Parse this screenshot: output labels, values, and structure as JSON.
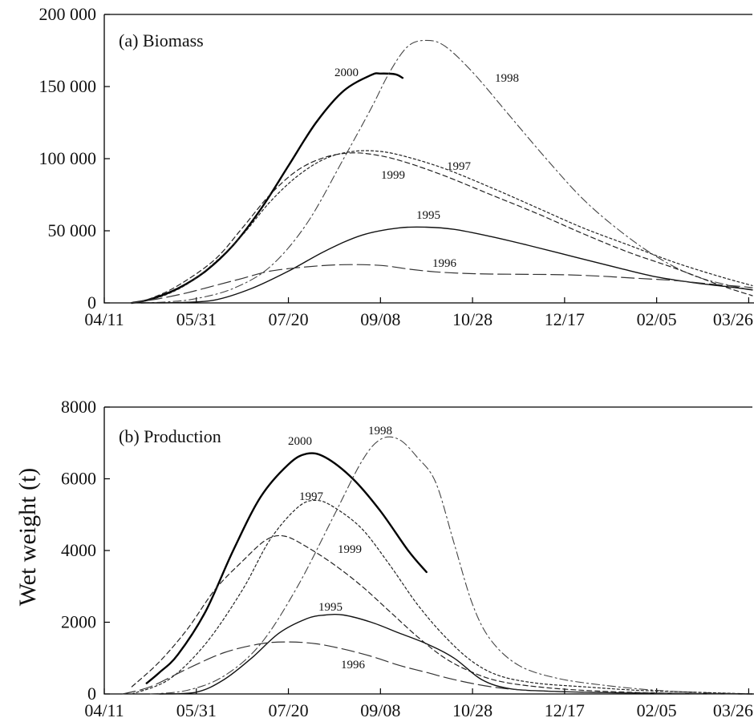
{
  "figure": {
    "ylabel": "Wet weight (t)"
  },
  "chart_data": [
    {
      "type": "line",
      "title": "(a) Biomass",
      "xlabel": "",
      "ylabel": "",
      "x_tick_labels": [
        "04/11",
        "05/31",
        "07/20",
        "09/08",
        "10/28",
        "12/17",
        "02/05",
        "03/26"
      ],
      "x_ticks_days": [
        0,
        50,
        100,
        150,
        200,
        250,
        300,
        350
      ],
      "y_tick_labels": [
        "0",
        "50 000",
        "100 000",
        "150 000",
        "200 000"
      ],
      "ylim": [
        0,
        200000
      ],
      "xlim": [
        0,
        352
      ],
      "grid": false,
      "series": [
        {
          "name": "2000",
          "color": "#000000",
          "style": "thick-solid",
          "points": [
            [
              15,
              0
            ],
            [
              25,
              2500
            ],
            [
              40,
              10000
            ],
            [
              55,
              22000
            ],
            [
              70,
              40000
            ],
            [
              85,
              65000
            ],
            [
              100,
              95000
            ],
            [
              115,
              125000
            ],
            [
              130,
              147000
            ],
            [
              145,
              158000
            ],
            [
              150,
              159000
            ],
            [
              158,
              158500
            ],
            [
              162,
              156000
            ]
          ]
        },
        {
          "name": "1998",
          "color": "#444444",
          "style": "dash-dot",
          "points": [
            [
              20,
              0
            ],
            [
              35,
              800
            ],
            [
              50,
              3000
            ],
            [
              70,
              10000
            ],
            [
              90,
              25000
            ],
            [
              110,
              55000
            ],
            [
              130,
              100000
            ],
            [
              145,
              135000
            ],
            [
              155,
              160000
            ],
            [
              165,
              178000
            ],
            [
              175,
              182000
            ],
            [
              185,
              178000
            ],
            [
              200,
              160000
            ],
            [
              220,
              130000
            ],
            [
              240,
              100000
            ],
            [
              260,
              72000
            ],
            [
              280,
              50000
            ],
            [
              300,
              32000
            ],
            [
              320,
              19000
            ],
            [
              340,
              12000
            ],
            [
              352,
              9000
            ]
          ]
        },
        {
          "name": "1997",
          "color": "#222222",
          "style": "dotted",
          "points": [
            [
              15,
              0
            ],
            [
              30,
              4000
            ],
            [
              45,
              13000
            ],
            [
              60,
              28000
            ],
            [
              75,
              47000
            ],
            [
              90,
              70000
            ],
            [
              105,
              88000
            ],
            [
              120,
              100000
            ],
            [
              135,
              105000
            ],
            [
              150,
              105000
            ],
            [
              165,
              101000
            ],
            [
              185,
              93000
            ],
            [
              210,
              80000
            ],
            [
              235,
              66000
            ],
            [
              260,
              52000
            ],
            [
              285,
              40000
            ],
            [
              310,
              28000
            ],
            [
              335,
              18000
            ],
            [
              352,
              12000
            ]
          ]
        },
        {
          "name": "1999",
          "color": "#222222",
          "style": "short-dash",
          "points": [
            [
              15,
              0
            ],
            [
              25,
              3000
            ],
            [
              40,
              12000
            ],
            [
              60,
              30000
            ],
            [
              75,
              52000
            ],
            [
              90,
              75000
            ],
            [
              105,
              92000
            ],
            [
              120,
              101000
            ],
            [
              135,
              104000
            ],
            [
              150,
              102000
            ],
            [
              165,
              97000
            ],
            [
              185,
              88000
            ],
            [
              210,
              75000
            ],
            [
              235,
              62000
            ],
            [
              260,
              48000
            ],
            [
              285,
              35000
            ],
            [
              310,
              24000
            ],
            [
              335,
              12000
            ],
            [
              352,
              5000
            ]
          ]
        },
        {
          "name": "1995",
          "color": "#111111",
          "style": "solid",
          "points": [
            [
              20,
              0
            ],
            [
              40,
              200
            ],
            [
              60,
              2000
            ],
            [
              80,
              10000
            ],
            [
              100,
              22000
            ],
            [
              120,
              36000
            ],
            [
              140,
              47000
            ],
            [
              160,
              52000
            ],
            [
              175,
              52500
            ],
            [
              190,
              51000
            ],
            [
              210,
              46000
            ],
            [
              230,
              40000
            ],
            [
              255,
              32000
            ],
            [
              280,
              24000
            ],
            [
              300,
              18000
            ],
            [
              320,
              14000
            ],
            [
              340,
              11000
            ],
            [
              352,
              9000
            ]
          ]
        },
        {
          "name": "1996",
          "color": "#333333",
          "style": "long-dash",
          "points": [
            [
              15,
              0
            ],
            [
              30,
              3000
            ],
            [
              45,
              7000
            ],
            [
              60,
              12000
            ],
            [
              75,
              17000
            ],
            [
              90,
              22000
            ],
            [
              110,
              25000
            ],
            [
              130,
              26500
            ],
            [
              150,
              26000
            ],
            [
              165,
              23500
            ],
            [
              180,
              21500
            ],
            [
              195,
              20500
            ],
            [
              210,
              20000
            ],
            [
              230,
              19800
            ],
            [
              250,
              19500
            ],
            [
              270,
              18500
            ],
            [
              290,
              17000
            ],
            [
              310,
              15500
            ],
            [
              330,
              13000
            ],
            [
              345,
              11500
            ],
            [
              352,
              10500
            ]
          ]
        }
      ],
      "series_label_positions_note": ""
    },
    {
      "type": "line",
      "title": "(b) Production",
      "xlabel": "",
      "ylabel": "",
      "x_tick_labels": [
        "04/11",
        "05/31",
        "07/20",
        "09/08",
        "10/28",
        "12/17",
        "02/05",
        "03/26"
      ],
      "x_ticks_days": [
        0,
        50,
        100,
        150,
        200,
        250,
        300,
        350
      ],
      "y_tick_labels": [
        "0",
        "2000",
        "4000",
        "6000",
        "8000"
      ],
      "ylim": [
        0,
        8000
      ],
      "xlim": [
        0,
        352
      ],
      "grid": false,
      "series": [
        {
          "name": "2000",
          "color": "#000000",
          "style": "thick-solid",
          "points": [
            [
              23,
              300
            ],
            [
              30,
              600
            ],
            [
              40,
              1100
            ],
            [
              55,
              2300
            ],
            [
              70,
              4000
            ],
            [
              85,
              5500
            ],
            [
              100,
              6400
            ],
            [
              110,
              6700
            ],
            [
              120,
              6600
            ],
            [
              135,
              6000
            ],
            [
              150,
              5100
            ],
            [
              165,
              4000
            ],
            [
              175,
              3400
            ]
          ]
        },
        {
          "name": "1998",
          "color": "#444444",
          "style": "dash-dot",
          "points": [
            [
              25,
              0
            ],
            [
              45,
              100
            ],
            [
              65,
              500
            ],
            [
              85,
              1400
            ],
            [
              105,
              3000
            ],
            [
              125,
              5000
            ],
            [
              140,
              6500
            ],
            [
              150,
              7100
            ],
            [
              160,
              7100
            ],
            [
              170,
              6600
            ],
            [
              180,
              5900
            ],
            [
              190,
              4200
            ],
            [
              200,
              2500
            ],
            [
              210,
              1500
            ],
            [
              225,
              800
            ],
            [
              245,
              450
            ],
            [
              270,
              250
            ],
            [
              300,
              100
            ],
            [
              330,
              30
            ],
            [
              352,
              0
            ]
          ]
        },
        {
          "name": "1997",
          "color": "#222222",
          "style": "dotted",
          "points": [
            [
              15,
              0
            ],
            [
              35,
              400
            ],
            [
              55,
              1400
            ],
            [
              75,
              2900
            ],
            [
              90,
              4300
            ],
            [
              105,
              5200
            ],
            [
              115,
              5400
            ],
            [
              125,
              5200
            ],
            [
              140,
              4600
            ],
            [
              155,
              3600
            ],
            [
              170,
              2500
            ],
            [
              185,
              1600
            ],
            [
              200,
              900
            ],
            [
              215,
              500
            ],
            [
              235,
              300
            ],
            [
              260,
              200
            ],
            [
              290,
              100
            ],
            [
              320,
              50
            ],
            [
              352,
              0
            ]
          ]
        },
        {
          "name": "1999",
          "color": "#222222",
          "style": "short-dash",
          "points": [
            [
              15,
              200
            ],
            [
              30,
              900
            ],
            [
              45,
              1800
            ],
            [
              60,
              2900
            ],
            [
              75,
              3700
            ],
            [
              88,
              4300
            ],
            [
              98,
              4400
            ],
            [
              110,
              4100
            ],
            [
              125,
              3600
            ],
            [
              140,
              3000
            ],
            [
              155,
              2300
            ],
            [
              170,
              1600
            ],
            [
              185,
              1000
            ],
            [
              200,
              600
            ],
            [
              215,
              350
            ],
            [
              235,
              200
            ],
            [
              260,
              100
            ],
            [
              290,
              40
            ],
            [
              320,
              10
            ],
            [
              352,
              0
            ]
          ]
        },
        {
          "name": "1995",
          "color": "#111111",
          "style": "solid",
          "points": [
            [
              30,
              0
            ],
            [
              50,
              50
            ],
            [
              65,
              400
            ],
            [
              80,
              1000
            ],
            [
              95,
              1700
            ],
            [
              110,
              2100
            ],
            [
              120,
              2200
            ],
            [
              130,
              2200
            ],
            [
              145,
              2000
            ],
            [
              160,
              1700
            ],
            [
              175,
              1400
            ],
            [
              190,
              1000
            ],
            [
              205,
              400
            ],
            [
              220,
              150
            ],
            [
              240,
              80
            ],
            [
              270,
              40
            ],
            [
              300,
              20
            ],
            [
              352,
              0
            ]
          ]
        },
        {
          "name": "1996",
          "color": "#333333",
          "style": "long-dash",
          "points": [
            [
              10,
              0
            ],
            [
              25,
              200
            ],
            [
              45,
              700
            ],
            [
              65,
              1150
            ],
            [
              85,
              1400
            ],
            [
              100,
              1450
            ],
            [
              115,
              1400
            ],
            [
              130,
              1250
            ],
            [
              145,
              1050
            ],
            [
              160,
              800
            ],
            [
              175,
              600
            ],
            [
              190,
              400
            ],
            [
              210,
              200
            ],
            [
              230,
              100
            ],
            [
              260,
              50
            ],
            [
              300,
              20
            ],
            [
              352,
              0
            ]
          ]
        }
      ]
    }
  ]
}
